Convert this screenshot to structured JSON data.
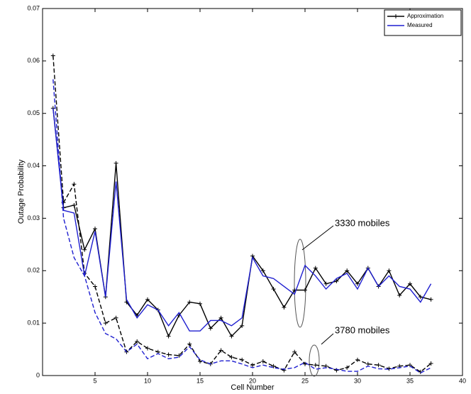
{
  "chart_data": {
    "type": "line",
    "x_label": "Cell Number",
    "y_label": "Outage Probability",
    "x": [
      1,
      2,
      3,
      4,
      5,
      6,
      7,
      8,
      9,
      10,
      11,
      12,
      13,
      14,
      15,
      16,
      17,
      18,
      19,
      20,
      21,
      22,
      23,
      24,
      25,
      26,
      27,
      28,
      29,
      30,
      31,
      32,
      33,
      34,
      35,
      36,
      37
    ],
    "xlim": [
      0,
      40
    ],
    "xticks": [
      5,
      10,
      15,
      20,
      25,
      30,
      35,
      40
    ],
    "ylim": [
      0,
      0.07
    ],
    "yticks": [
      0,
      0.01,
      0.02,
      0.03,
      0.04,
      0.05,
      0.06,
      0.07
    ],
    "legend_position": "upper right",
    "series": [
      {
        "name": "Approximation",
        "color": "#000000",
        "marker": "+",
        "data": [
          {
            "dashed": false,
            "values": [
              0.051,
              0.032,
              0.0325,
              0.024,
              0.028,
              0.015,
              0.0405,
              0.014,
              0.0115,
              0.0145,
              0.0125,
              0.0075,
              0.0115,
              0.014,
              0.0137,
              0.009,
              0.011,
              0.0075,
              0.0095,
              0.0228,
              0.02,
              0.0165,
              0.013,
              0.0163,
              0.0163,
              0.0205,
              0.0175,
              0.018,
              0.02,
              0.0175,
              0.0205,
              0.017,
              0.02,
              0.0153,
              0.0175,
              0.015,
              0.0145
            ]
          },
          {
            "dashed": true,
            "values": [
              0.061,
              0.033,
              0.0365,
              0.0195,
              0.017,
              0.01,
              0.011,
              0.0045,
              0.0065,
              0.0052,
              0.0045,
              0.004,
              0.0038,
              0.006,
              0.0027,
              0.0022,
              0.0048,
              0.0035,
              0.003,
              0.002,
              0.0027,
              0.0018,
              0.001,
              0.0045,
              0.0022,
              0.002,
              0.0018,
              0.001,
              0.0015,
              0.003,
              0.0022,
              0.002,
              0.0013,
              0.0018,
              0.002,
              0.0007,
              0.0023
            ]
          }
        ]
      },
      {
        "name": "Measured",
        "color": "#1f1fd0",
        "marker": null,
        "data": [
          {
            "dashed": false,
            "values": [
              0.051,
              0.0315,
              0.031,
              0.019,
              0.0275,
              0.015,
              0.037,
              0.0145,
              0.011,
              0.0135,
              0.0125,
              0.0095,
              0.012,
              0.0085,
              0.0085,
              0.0105,
              0.0105,
              0.0095,
              0.011,
              0.0225,
              0.019,
              0.0185,
              0.017,
              0.0155,
              0.021,
              0.019,
              0.0165,
              0.0185,
              0.0195,
              0.0165,
              0.0205,
              0.017,
              0.019,
              0.017,
              0.0165,
              0.014,
              0.0175
            ]
          },
          {
            "dashed": true,
            "values": [
              0.0565,
              0.03,
              0.0225,
              0.019,
              0.012,
              0.008,
              0.007,
              0.0045,
              0.006,
              0.0032,
              0.0042,
              0.0032,
              0.0035,
              0.0055,
              0.003,
              0.0022,
              0.0028,
              0.0028,
              0.0022,
              0.0015,
              0.002,
              0.0015,
              0.0012,
              0.0015,
              0.0025,
              0.0012,
              0.0015,
              0.0012,
              0.0008,
              0.0008,
              0.0018,
              0.0013,
              0.0012,
              0.0015,
              0.0018,
              0.0005,
              0.0015
            ]
          }
        ]
      }
    ],
    "annotations": [
      "3330 mobiles",
      "3780 mobiles"
    ]
  }
}
